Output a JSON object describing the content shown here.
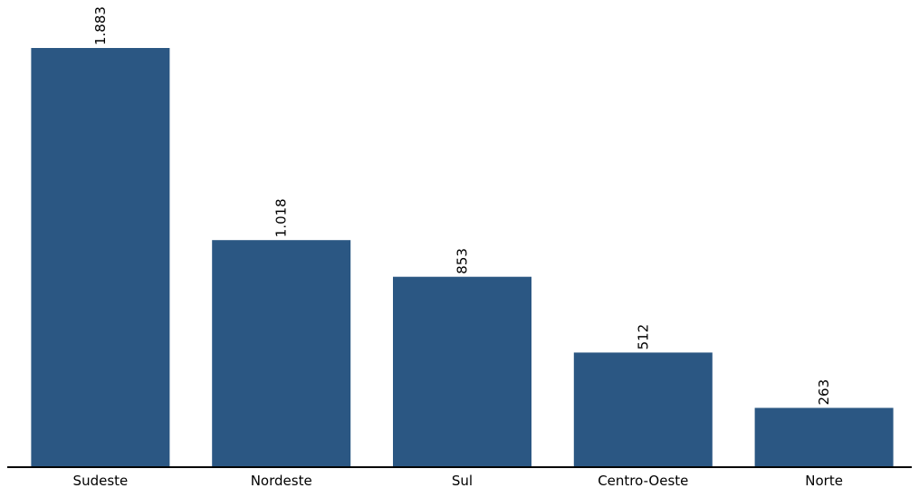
{
  "chart_data": {
    "type": "bar",
    "categories": [
      "Sudeste",
      "Nordeste",
      "Sul",
      "Centro-Oeste",
      "Norte"
    ],
    "values": [
      1883,
      1018,
      853,
      512,
      263
    ],
    "data_labels": [
      "1.883",
      "1.018",
      "853",
      "512",
      "263"
    ],
    "title": "",
    "xlabel": "",
    "ylabel": "",
    "ylim": [
      0,
      1883
    ],
    "grid": false,
    "legend": "none",
    "bar_color": "#2b5783",
    "data_label_orientation": "vertical"
  }
}
